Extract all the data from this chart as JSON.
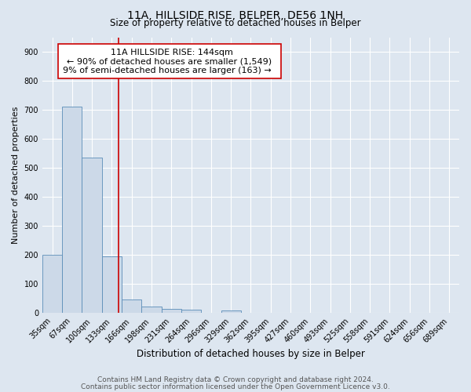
{
  "title": "11A, HILLSIDE RISE, BELPER, DE56 1NH",
  "subtitle": "Size of property relative to detached houses in Belper",
  "xlabel": "Distribution of detached houses by size in Belper",
  "ylabel": "Number of detached properties",
  "bar_labels": [
    "35sqm",
    "67sqm",
    "100sqm",
    "133sqm",
    "166sqm",
    "198sqm",
    "231sqm",
    "264sqm",
    "296sqm",
    "329sqm",
    "362sqm",
    "395sqm",
    "427sqm",
    "460sqm",
    "493sqm",
    "525sqm",
    "558sqm",
    "591sqm",
    "624sqm",
    "656sqm",
    "689sqm"
  ],
  "bar_values": [
    200,
    710,
    535,
    195,
    47,
    22,
    13,
    10,
    0,
    8,
    0,
    0,
    0,
    0,
    0,
    0,
    0,
    0,
    0,
    0,
    0
  ],
  "bar_color": "#ccd9e8",
  "bar_edge_color": "#5b8db8",
  "vline_color": "#cc0000",
  "annotation_title": "11A HILLSIDE RISE: 144sqm",
  "annotation_line1": "← 90% of detached houses are smaller (1,549)",
  "annotation_line2": "9% of semi-detached houses are larger (163) →",
  "ylim": [
    0,
    950
  ],
  "yticks": [
    0,
    100,
    200,
    300,
    400,
    500,
    600,
    700,
    800,
    900
  ],
  "background_color": "#dde6f0",
  "footer1": "Contains HM Land Registry data © Crown copyright and database right 2024.",
  "footer2": "Contains public sector information licensed under the Open Government Licence v3.0.",
  "title_fontsize": 10,
  "subtitle_fontsize": 8.5,
  "xlabel_fontsize": 8.5,
  "ylabel_fontsize": 8,
  "annotation_fontsize": 8,
  "tick_fontsize": 7,
  "footer_fontsize": 6.5
}
